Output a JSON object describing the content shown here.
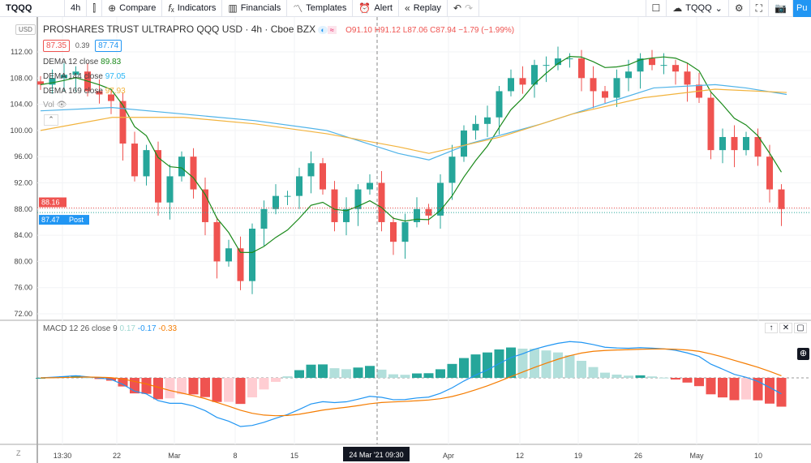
{
  "toolbar": {
    "symbol": "TQQQ",
    "interval": "4h",
    "compare": "Compare",
    "indicators": "Indicators",
    "financials": "Financials",
    "templates": "Templates",
    "alert": "Alert",
    "replay": "Replay",
    "layout_name": "TQQQ",
    "publish": "Pu"
  },
  "legend": {
    "title": "PROSHARES TRUST ULTRAPRO QQQ USD · 4h · Cboe BZX",
    "currency": "USD",
    "o": "O91.10",
    "h": "H91.12",
    "l": "L87.06",
    "c": "C87.94",
    "change": "−1.79 (−1.99%)",
    "bid": "87.35",
    "spread": "0.39",
    "ask": "87.74",
    "dema12": {
      "label": "DEMA 12 close",
      "value": "89.83"
    },
    "dema144": {
      "label": "DEMA 144 close",
      "value": "97.05"
    },
    "dema169": {
      "label": "DEMA 169 close",
      "value": "97.93"
    },
    "vol": "Vol"
  },
  "macd_legend": {
    "label": "MACD 12 26 close 9",
    "hist": "0.17",
    "macd": "-0.17",
    "signal": "-0.33"
  },
  "price_axis": [
    "112.00",
    "108.00",
    "104.00",
    "100.00",
    "96.00",
    "92.00",
    "88.00",
    "84.00",
    "80.00",
    "76.00",
    "72.00"
  ],
  "price_tags": {
    "last": "88.16",
    "post": "87.47",
    "post_label": "Post"
  },
  "time_axis": [
    "13:30",
    "22",
    "Mar",
    "8",
    "15",
    "Apr",
    "12",
    "19",
    "26",
    "May",
    "10"
  ],
  "crosshair_time": "24 Mar '21  09:30",
  "colors": {
    "up": "#26a69a",
    "down": "#ef5350",
    "dema12": "#1b8a1b",
    "dema144": "#4fb3e8",
    "dema169": "#f2b33d",
    "macd": "#2196f3",
    "signal": "#f57c00"
  },
  "chart_data": {
    "type": "candlestick",
    "ylim": [
      72,
      112
    ],
    "closes": [
      107,
      108,
      108.5,
      109,
      106,
      105.5,
      104.5,
      98,
      93,
      97,
      89,
      93,
      96,
      91,
      86,
      80,
      82,
      77,
      85,
      88,
      90,
      90,
      93,
      95,
      91,
      86,
      88,
      91,
      92,
      86,
      83,
      86,
      88,
      87,
      92,
      96,
      100,
      101,
      102,
      106,
      108,
      107,
      110,
      110,
      111,
      111,
      108,
      106,
      105,
      108,
      109,
      111,
      110,
      110,
      109,
      107,
      105,
      97,
      99,
      97,
      99,
      96,
      91,
      88
    ],
    "dema144": [
      [
        0,
        103
      ],
      [
        7,
        103.5
      ],
      [
        14,
        102.5
      ],
      [
        21,
        101.5
      ],
      [
        28,
        100
      ],
      [
        35,
        96.5
      ],
      [
        38,
        95.5
      ],
      [
        42,
        98
      ],
      [
        49,
        101
      ],
      [
        56,
        104.5
      ],
      [
        60,
        106.5
      ],
      [
        66,
        107
      ],
      [
        69,
        106.5
      ],
      [
        73,
        105.5
      ]
    ],
    "dema169": [
      [
        0,
        100
      ],
      [
        7,
        102
      ],
      [
        14,
        102
      ],
      [
        21,
        101
      ],
      [
        28,
        99.5
      ],
      [
        35,
        97.5
      ],
      [
        38,
        96.5
      ],
      [
        45,
        99
      ],
      [
        52,
        102.5
      ],
      [
        59,
        105
      ],
      [
        66,
        106.3
      ],
      [
        73,
        105.8
      ]
    ]
  }
}
